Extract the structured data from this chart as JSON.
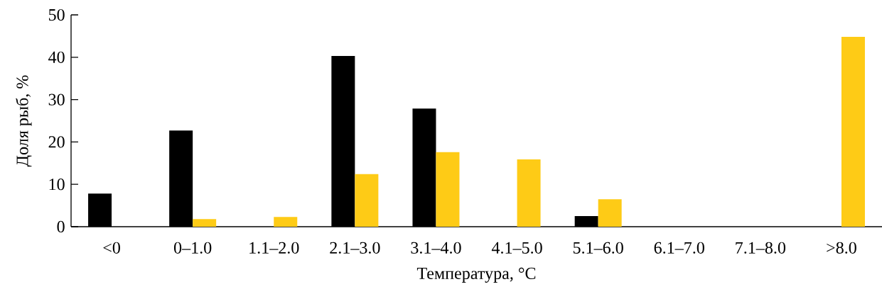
{
  "chart_data": {
    "type": "bar",
    "xlabel": "Температура, °C",
    "ylabel": "Доля рыб, %",
    "categories": [
      "<0",
      "0–1.0",
      "1.1–2.0",
      "2.1–3.0",
      "3.1–4.0",
      "4.1–5.0",
      "5.1–6.0",
      "6.1–7.0",
      "7.1–8.0",
      ">8.0"
    ],
    "series": [
      {
        "color": "#000000",
        "values": [
          7.8,
          22.7,
          null,
          40.3,
          27.9,
          null,
          2.5,
          null,
          null,
          null
        ]
      },
      {
        "color": "#fecb16",
        "values": [
          null,
          1.8,
          2.3,
          12.4,
          17.6,
          15.9,
          6.5,
          null,
          null,
          44.8
        ]
      }
    ],
    "ylim": [
      0,
      50
    ],
    "yticks": [
      0,
      10,
      20,
      30,
      40,
      50
    ],
    "grid": false
  }
}
